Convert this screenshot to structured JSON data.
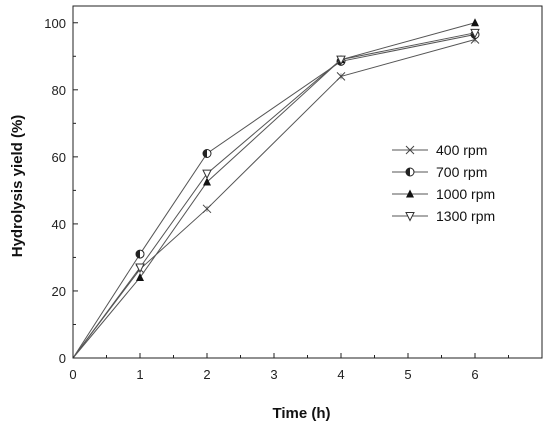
{
  "chart_data": {
    "type": "line",
    "xlabel": "Time (h)",
    "ylabel": "Hydrolysis yield (%)",
    "xlim": [
      0,
      7
    ],
    "ylim": [
      0,
      105
    ],
    "xticks": [
      "0",
      "1",
      "2",
      "3",
      "4",
      "5",
      "6"
    ],
    "yticks": [
      "0",
      "20",
      "40",
      "60",
      "80",
      "100"
    ],
    "x": [
      0,
      1,
      2,
      4,
      6
    ],
    "legend_position": "right",
    "grid": false,
    "series": [
      {
        "name": "400 rpm",
        "marker": "x",
        "values": [
          0,
          26.5,
          44.5,
          84.0,
          95.0
        ]
      },
      {
        "name": "700 rpm",
        "marker": "half-circle",
        "values": [
          0,
          31.0,
          61.0,
          88.5,
          96.5
        ]
      },
      {
        "name": "1000 rpm",
        "marker": "triangle-up",
        "values": [
          0,
          24.0,
          52.5,
          89.0,
          100.0
        ]
      },
      {
        "name": "1300 rpm",
        "marker": "triangle-down",
        "values": [
          0,
          27.0,
          55.0,
          89.0,
          97.0
        ]
      }
    ]
  }
}
